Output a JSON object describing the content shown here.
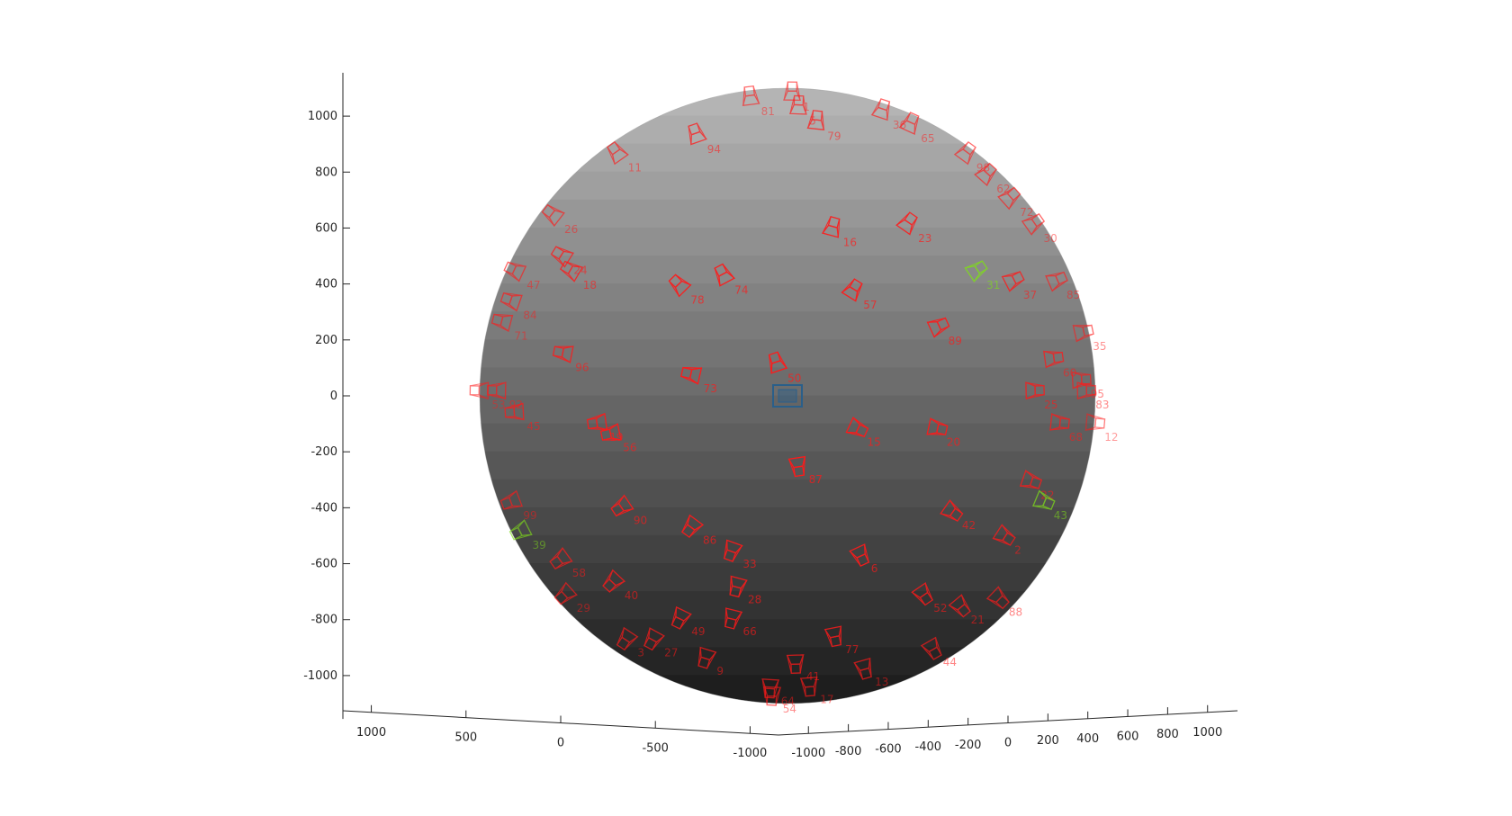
{
  "chart_data": {
    "type": "scatter3d",
    "title": "",
    "description_source": "camera poses on a sphere",
    "sphere": {
      "radius": 1100,
      "center": [
        0,
        0,
        0
      ]
    },
    "colors": {
      "camera_default": "#ff1a1a",
      "camera_highlight": "#7fdc1a",
      "reference_marker": "#2a5f8a",
      "sphere_top": "#b4b4b4",
      "sphere_bottom": "#1e1e1e",
      "axis": "#262626"
    },
    "axes": {
      "z": {
        "ticks": [
          1000,
          800,
          600,
          400,
          200,
          0,
          -200,
          -400,
          -600,
          -800,
          -1000
        ],
        "labels": [
          "1000",
          "800",
          "600",
          "400",
          "200",
          "0",
          "-200",
          "-400",
          "-600",
          "-800",
          "-1000"
        ],
        "range": [
          -1150,
          1150
        ]
      },
      "x": {
        "ticks": [
          1000,
          500,
          0,
          -500,
          -1000
        ],
        "labels": [
          "1000",
          "500",
          "0",
          "-500",
          "-1000"
        ],
        "range": [
          1150,
          -1150
        ]
      },
      "y": {
        "ticks": [
          -1000,
          -800,
          -600,
          -400,
          -200,
          0,
          200,
          400,
          600,
          800,
          1000
        ],
        "labels": [
          "-1000",
          "-800",
          "-600",
          "-400",
          "-200",
          "0",
          "200",
          "400",
          "600",
          "800",
          "1000"
        ],
        "range": [
          -1150,
          1150
        ]
      }
    },
    "cameras": [
      {
        "id": "81",
        "lon": -30,
        "lat": 76,
        "color": "red"
      },
      {
        "id": "1",
        "lon": 5,
        "lat": 80,
        "color": "red"
      },
      {
        "id": "36",
        "lon": 55,
        "lat": 68,
        "color": "red"
      },
      {
        "id": "65",
        "lon": 58,
        "lat": 62,
        "color": "red"
      },
      {
        "id": "5",
        "lon": 6,
        "lat": 70,
        "color": "red"
      },
      {
        "id": "79",
        "lon": 12,
        "lat": 63,
        "color": "red"
      },
      {
        "id": "94",
        "lon": -34,
        "lat": 58,
        "color": "red"
      },
      {
        "id": "98",
        "lon": 70,
        "lat": 52,
        "color": "red"
      },
      {
        "id": "62",
        "lon": 68,
        "lat": 46,
        "color": "red"
      },
      {
        "id": "72",
        "lon": 70,
        "lat": 40,
        "color": "red"
      },
      {
        "id": "30",
        "lon": 74,
        "lat": 34,
        "color": "red"
      },
      {
        "id": "11",
        "lon": -64,
        "lat": 52,
        "color": "red"
      },
      {
        "id": "26",
        "lon": -70,
        "lat": 36,
        "color": "red"
      },
      {
        "id": "24",
        "lon": -55,
        "lat": 27,
        "color": "red"
      },
      {
        "id": "18",
        "lon": -50,
        "lat": 24,
        "color": "red"
      },
      {
        "id": "47",
        "lon": -75,
        "lat": 24,
        "color": "red"
      },
      {
        "id": "84",
        "lon": -70,
        "lat": 18,
        "color": "red"
      },
      {
        "id": "71",
        "lon": -72,
        "lat": 14,
        "color": "red"
      },
      {
        "id": "16",
        "lon": 10,
        "lat": 33,
        "color": "red"
      },
      {
        "id": "23",
        "lon": 28,
        "lat": 34,
        "color": "red"
      },
      {
        "id": "74",
        "lon": -13,
        "lat": 23,
        "color": "red"
      },
      {
        "id": "78",
        "lon": -22,
        "lat": 21,
        "color": "red"
      },
      {
        "id": "57",
        "lon": 13,
        "lat": 20,
        "color": "red"
      },
      {
        "id": "89",
        "lon": 30,
        "lat": 13,
        "color": "red"
      },
      {
        "id": "37",
        "lon": 52,
        "lat": 22,
        "color": "red"
      },
      {
        "id": "85",
        "lon": 70,
        "lat": 22,
        "color": "red"
      },
      {
        "id": "35",
        "lon": 78,
        "lat": 12,
        "color": "red"
      },
      {
        "id": "60",
        "lon": 60,
        "lat": 7,
        "color": "red"
      },
      {
        "id": "96",
        "lon": -47,
        "lat": 8,
        "color": "red"
      },
      {
        "id": "73",
        "lon": -18,
        "lat": 4,
        "color": "red"
      },
      {
        "id": "50",
        "lon": -2,
        "lat": 6,
        "color": "red"
      },
      {
        "id": "95",
        "lon": 72,
        "lat": 3,
        "color": "red"
      },
      {
        "id": "83",
        "lon": 75,
        "lat": 1,
        "color": "red"
      },
      {
        "id": "25",
        "lon": 53,
        "lat": 1,
        "color": "red"
      },
      {
        "id": "53",
        "lon": -85,
        "lat": 1,
        "color": "red"
      },
      {
        "id": "92",
        "lon": -70,
        "lat": 1,
        "color": "red"
      },
      {
        "id": "45",
        "lon": -62,
        "lat": -3,
        "color": "red"
      },
      {
        "id": "19",
        "lon": -38,
        "lat": -5,
        "color": "red"
      },
      {
        "id": "56",
        "lon": -35,
        "lat": -7,
        "color": "red"
      },
      {
        "id": "15",
        "lon": 13,
        "lat": -6,
        "color": "red"
      },
      {
        "id": "20",
        "lon": 29,
        "lat": -6,
        "color": "red"
      },
      {
        "id": "68",
        "lon": 62,
        "lat": -5,
        "color": "red"
      },
      {
        "id": "12",
        "lon": 87,
        "lat": -5,
        "color": "red"
      },
      {
        "id": "22",
        "lon": 55,
        "lat": -16,
        "color": "red"
      },
      {
        "id": "87",
        "lon": 2,
        "lat": -13,
        "color": "red"
      },
      {
        "id": "99",
        "lon": -72,
        "lat": -20,
        "color": "red"
      },
      {
        "id": "90",
        "lon": -35,
        "lat": -21,
        "color": "red"
      },
      {
        "id": "86",
        "lon": -20,
        "lat": -25,
        "color": "red"
      },
      {
        "id": "42",
        "lon": 35,
        "lat": -22,
        "color": "red"
      },
      {
        "id": "2",
        "lon": 52,
        "lat": -27,
        "color": "red"
      },
      {
        "id": "33",
        "lon": -12,
        "lat": -30,
        "color": "red"
      },
      {
        "id": "6",
        "lon": 16,
        "lat": -31,
        "color": "red"
      },
      {
        "id": "28",
        "lon": -12,
        "lat": -38,
        "color": "red"
      },
      {
        "id": "52",
        "lon": 35,
        "lat": -40,
        "color": "red"
      },
      {
        "id": "21",
        "lon": 50,
        "lat": -43,
        "color": "red"
      },
      {
        "id": "88",
        "lon": 65,
        "lat": -41,
        "color": "red"
      },
      {
        "id": "40",
        "lon": -45,
        "lat": -37,
        "color": "red"
      },
      {
        "id": "58",
        "lon": -60,
        "lat": -32,
        "color": "red"
      },
      {
        "id": "29",
        "lon": -70,
        "lat": -40,
        "color": "red"
      },
      {
        "id": "49",
        "lon": -30,
        "lat": -46,
        "color": "red"
      },
      {
        "id": "66",
        "lon": -15,
        "lat": -46,
        "color": "red"
      },
      {
        "id": "27",
        "lon": -45,
        "lat": -52,
        "color": "red"
      },
      {
        "id": "3",
        "lon": -58,
        "lat": -52,
        "color": "red"
      },
      {
        "id": "77",
        "lon": 14,
        "lat": -51,
        "color": "red"
      },
      {
        "id": "9",
        "lon": -30,
        "lat": -58,
        "color": "red"
      },
      {
        "id": "41",
        "lon": 3,
        "lat": -60,
        "color": "red"
      },
      {
        "id": "44",
        "lon": 55,
        "lat": -55,
        "color": "red"
      },
      {
        "id": "17",
        "lon": 12,
        "lat": -70,
        "color": "red"
      },
      {
        "id": "64",
        "lon": -10,
        "lat": -71,
        "color": "red"
      },
      {
        "id": "54",
        "lon": -12,
        "lat": -76,
        "color": "red"
      },
      {
        "id": "13",
        "lon": 32,
        "lat": -62,
        "color": "red"
      },
      {
        "id": "43",
        "lon": 62,
        "lat": -20,
        "color": "highlight"
      },
      {
        "id": "31",
        "lon": 42,
        "lat": 24,
        "color": "highlight"
      },
      {
        "id": "39",
        "lon": -74,
        "lat": -26,
        "color": "highlight"
      },
      {
        "id": "ref",
        "lon": 0,
        "lat": 0,
        "color": "reference"
      }
    ]
  }
}
